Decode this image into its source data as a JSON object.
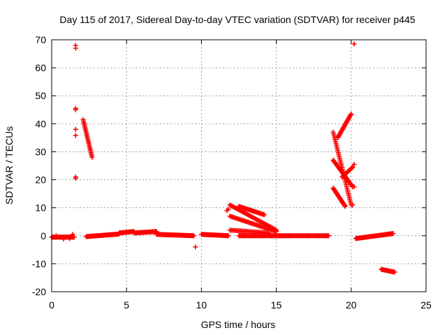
{
  "chart_data": {
    "type": "scatter",
    "title": "Day 115 of 2017, Sidereal Day-to-day VTEC variation (SDTVAR) for receiver p445",
    "xlabel": "GPS time / hours",
    "ylabel": "SDTVAR / TECUs",
    "xlim": [
      0,
      25
    ],
    "ylim": [
      -20,
      70
    ],
    "xticks": [
      0,
      5,
      10,
      15,
      20,
      25
    ],
    "yticks": [
      -20,
      -10,
      0,
      10,
      20,
      30,
      40,
      50,
      60,
      70
    ],
    "grid": true,
    "marker": "+",
    "color": "#ff0000",
    "segments": [
      {
        "name": "baseline-1",
        "x0": 0.0,
        "y0": -0.5,
        "x1": 1.5,
        "y1": -0.5,
        "n": 40
      },
      {
        "name": "baseline-2",
        "x0": 2.3,
        "y0": -0.3,
        "x1": 4.5,
        "y1": 0.6,
        "n": 50
      },
      {
        "name": "baseline-3",
        "x0": 4.5,
        "y0": 1.0,
        "x1": 5.5,
        "y1": 1.5,
        "n": 25
      },
      {
        "name": "baseline-4",
        "x0": 5.5,
        "y0": 1.0,
        "x1": 7.0,
        "y1": 1.5,
        "n": 30
      },
      {
        "name": "baseline-5",
        "x0": 7.0,
        "y0": 0.5,
        "x1": 9.5,
        "y1": 0.0,
        "n": 50
      },
      {
        "name": "baseline-6",
        "x0": 10.0,
        "y0": 0.5,
        "x1": 11.8,
        "y1": 0.0,
        "n": 35
      },
      {
        "name": "baseline-7",
        "x0": 12.5,
        "y0": 0.0,
        "x1": 18.5,
        "y1": 0.0,
        "n": 90
      },
      {
        "name": "baseline-8",
        "x0": 20.3,
        "y0": -1.0,
        "x1": 22.8,
        "y1": 0.8,
        "n": 45
      },
      {
        "name": "baseline-9",
        "x0": 22.0,
        "y0": -12.0,
        "x1": 22.9,
        "y1": -13.0,
        "n": 18
      },
      {
        "name": "arc-early",
        "x0": 2.1,
        "y0": 41.5,
        "x1": 2.7,
        "y1": 28.0,
        "n": 25
      },
      {
        "name": "arc-mid-1",
        "x0": 11.9,
        "y0": 11.0,
        "x1": 15.0,
        "y1": 2.0,
        "n": 40
      },
      {
        "name": "arc-mid-2",
        "x0": 11.9,
        "y0": 7.0,
        "x1": 15.0,
        "y1": 1.5,
        "n": 40
      },
      {
        "name": "arc-mid-3",
        "x0": 11.9,
        "y0": 2.0,
        "x1": 14.5,
        "y1": 1.0,
        "n": 30
      },
      {
        "name": "arc-mid-4",
        "x0": 12.5,
        "y0": 10.5,
        "x1": 14.2,
        "y1": 7.5,
        "n": 25
      },
      {
        "name": "arc-late-1",
        "x0": 18.8,
        "y0": 37.0,
        "x1": 20.0,
        "y1": 11.0,
        "n": 40
      },
      {
        "name": "arc-late-2",
        "x0": 19.1,
        "y0": 35.0,
        "x1": 20.0,
        "y1": 43.5,
        "n": 25
      },
      {
        "name": "arc-late-3",
        "x0": 18.8,
        "y0": 27.0,
        "x1": 20.1,
        "y1": 17.5,
        "n": 35
      },
      {
        "name": "arc-late-4",
        "x0": 18.8,
        "y0": 17.0,
        "x1": 19.6,
        "y1": 10.5,
        "n": 25
      },
      {
        "name": "arc-late-5",
        "x0": 19.4,
        "y0": 21.0,
        "x1": 20.1,
        "y1": 24.5,
        "n": 15
      }
    ],
    "points": [
      {
        "x": 1.6,
        "y": 68.0
      },
      {
        "x": 1.6,
        "y": 67.0
      },
      {
        "x": 1.6,
        "y": 45.5
      },
      {
        "x": 1.6,
        "y": 45.0
      },
      {
        "x": 1.6,
        "y": 38.0
      },
      {
        "x": 1.6,
        "y": 35.8
      },
      {
        "x": 1.6,
        "y": 21.0
      },
      {
        "x": 1.6,
        "y": 20.5
      },
      {
        "x": 1.4,
        "y": 0.5
      },
      {
        "x": 1.2,
        "y": -1.0
      },
      {
        "x": 0.3,
        "y": 0.0
      },
      {
        "x": 0.8,
        "y": -1.2
      },
      {
        "x": 9.6,
        "y": -4.0
      },
      {
        "x": 11.7,
        "y": 9.0
      },
      {
        "x": 11.8,
        "y": 9.5
      },
      {
        "x": 20.2,
        "y": 68.5
      },
      {
        "x": 20.2,
        "y": 25.5
      },
      {
        "x": 20.1,
        "y": 11.0
      },
      {
        "x": 20.2,
        "y": 17.5
      }
    ]
  }
}
